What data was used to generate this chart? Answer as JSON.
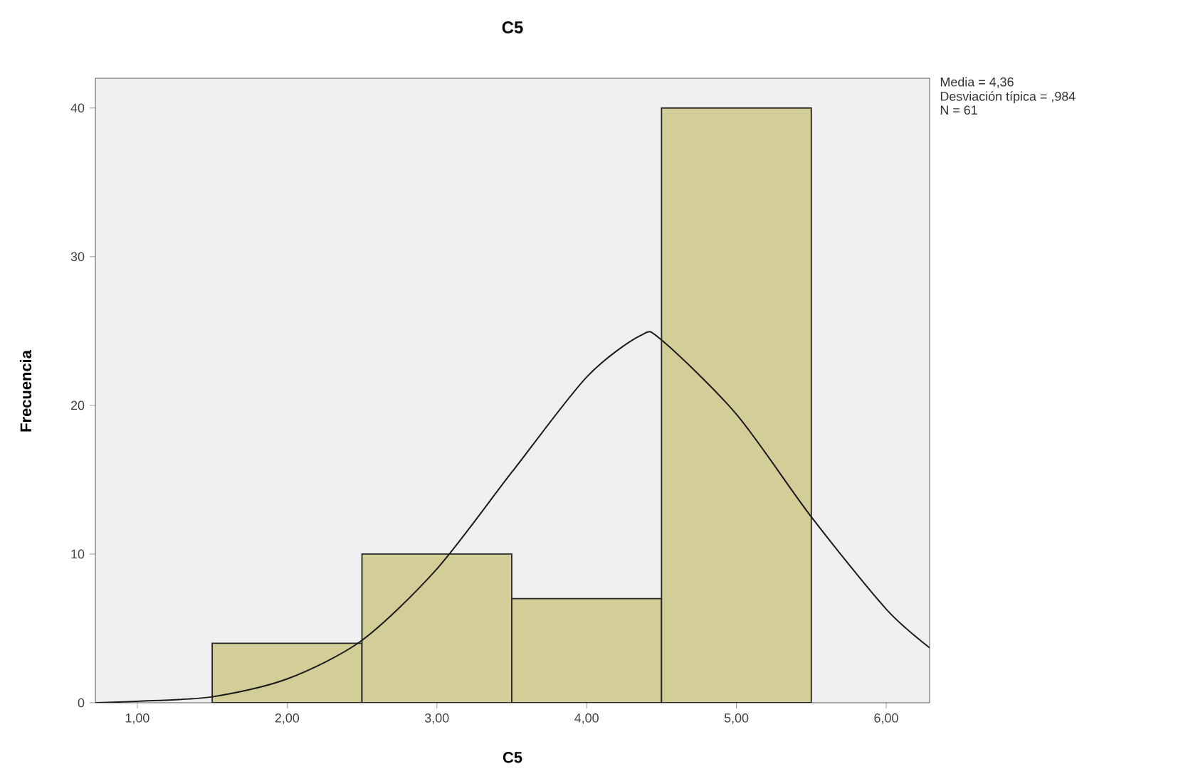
{
  "chart_data": {
    "type": "histogram",
    "title": "C5",
    "xlabel": "C5",
    "ylabel": "Frecuencia",
    "bins": [
      1.5,
      2.5,
      3.5,
      4.5,
      5.5
    ],
    "values": [
      4,
      10,
      7,
      40
    ],
    "color": "#d3cd97",
    "series": [
      {
        "type": "line",
        "color": "#1a1a1a",
        "x": [
          0.72,
          1.0,
          1.5,
          2.0,
          2.5,
          3.0,
          3.5,
          4.0,
          4.36,
          4.5,
          5.0,
          5.5,
          6.0,
          6.29
        ],
        "values": [
          0,
          0.1,
          0.4,
          1.6,
          4.2,
          9.0,
          15.5,
          21.9,
          24.7,
          24.4,
          19.4,
          12.5,
          6.3,
          3.7
        ]
      }
    ],
    "xlim": [
      0.72,
      6.29
    ],
    "ylim": [
      0,
      42
    ],
    "xticks": [
      {
        "value": 1,
        "label": "1,00"
      },
      {
        "value": 2,
        "label": "2,00"
      },
      {
        "value": 3,
        "label": "3,00"
      },
      {
        "value": 4,
        "label": "4,00"
      },
      {
        "value": 5,
        "label": "5,00"
      },
      {
        "value": 6,
        "label": "6,00"
      }
    ],
    "yticks": [
      0,
      10,
      20,
      30,
      40
    ],
    "annotations": [
      "Media = 4,36",
      "Desviación típica = ,984",
      "N = 61"
    ]
  }
}
